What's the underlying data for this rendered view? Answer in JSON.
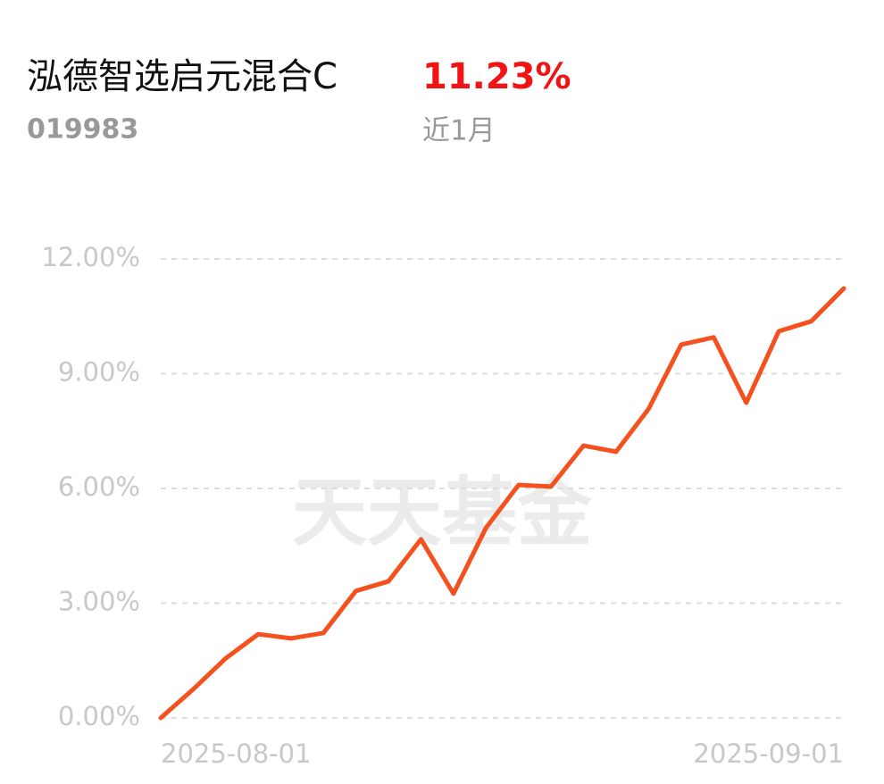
{
  "header": {
    "name": "泓德智选启元混合C",
    "return": "11.23%",
    "code": "019983",
    "period": "近1月"
  },
  "chart_data": {
    "type": "line",
    "watermark": "天天基金",
    "categories": [
      "2025-08-01",
      null,
      null,
      null,
      null,
      null,
      null,
      null,
      null,
      null,
      null,
      null,
      null,
      null,
      null,
      null,
      null,
      null,
      null,
      null,
      null,
      "2025-09-01"
    ],
    "series": [
      {
        "name": "泓德智选启元混合C",
        "color": "#f4511e",
        "values": [
          0,
          0.75,
          1.56,
          2.19,
          2.08,
          2.22,
          3.32,
          3.57,
          4.67,
          3.25,
          4.97,
          6.09,
          6.05,
          7.12,
          6.96,
          8.08,
          9.76,
          9.95,
          8.24,
          10.11,
          10.37,
          11.23
        ]
      }
    ],
    "ylim": [
      0,
      12
    ],
    "yticks": [
      {
        "value": 0,
        "label": "0.00%"
      },
      {
        "value": 3,
        "label": "3.00%"
      },
      {
        "value": 6,
        "label": "6.00%"
      },
      {
        "value": 9,
        "label": "9.00%"
      },
      {
        "value": 12,
        "label": "12.00%"
      }
    ],
    "grid": true
  }
}
